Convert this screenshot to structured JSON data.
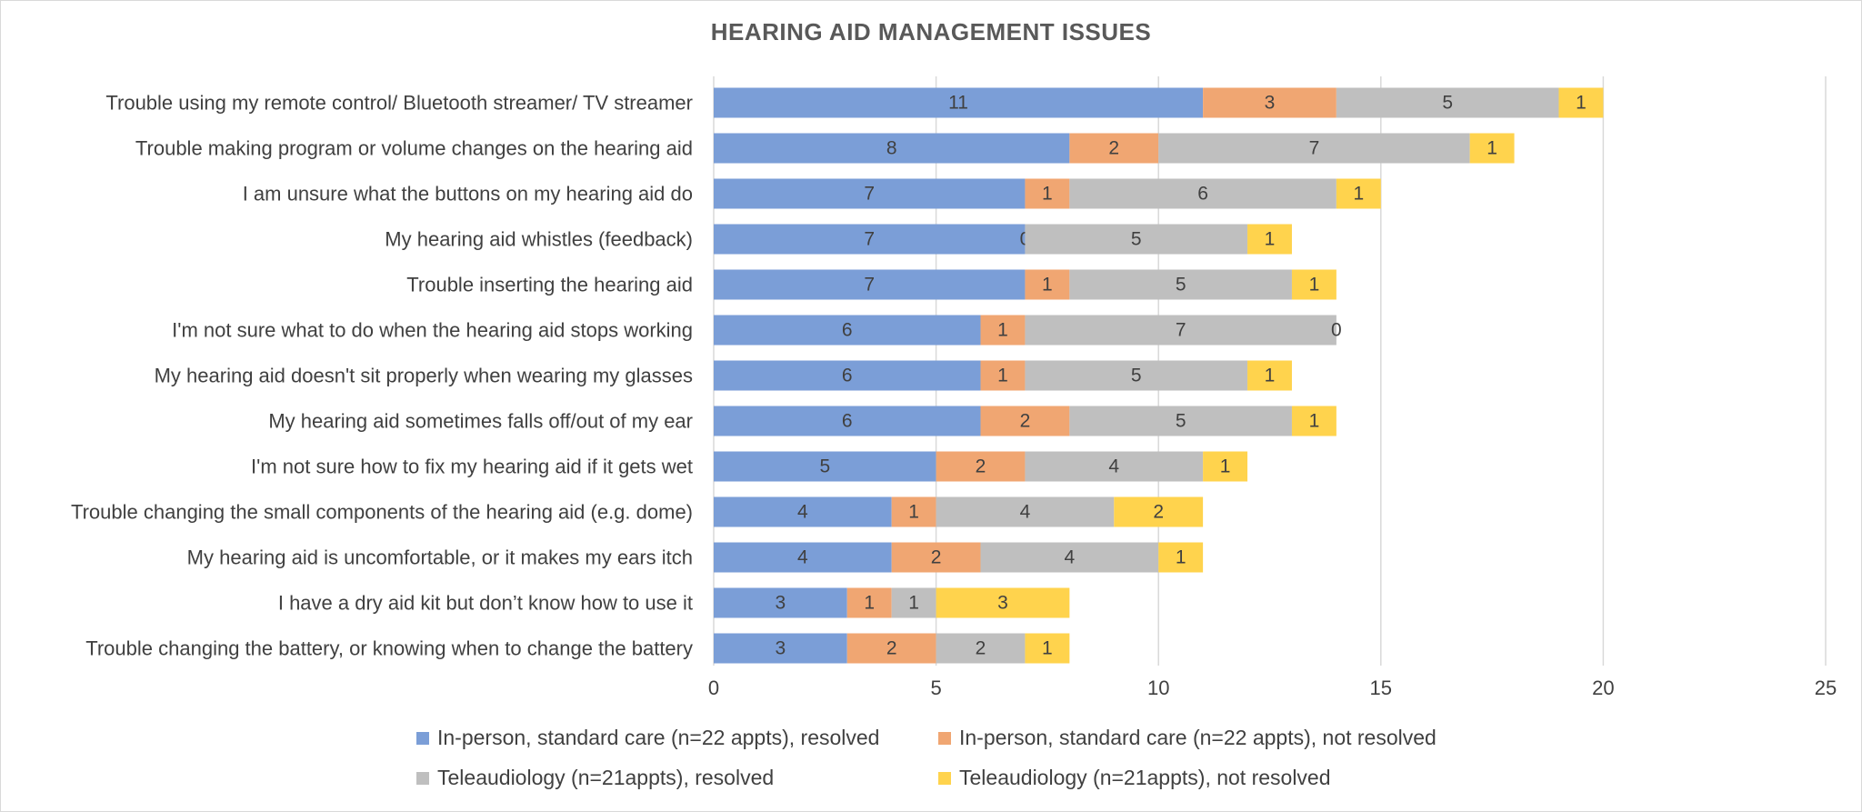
{
  "chart_data": {
    "type": "bar",
    "orientation": "horizontal",
    "stacked": true,
    "title": "HEARING AID MANAGEMENT ISSUES",
    "xlim": [
      0,
      25
    ],
    "xticks": [
      0,
      5,
      10,
      15,
      20,
      25
    ],
    "grid": true,
    "legend_position": "bottom",
    "categories": [
      "Trouble using my remote control/ Bluetooth streamer/ TV streamer",
      "Trouble making program or volume changes on the hearing aid",
      "I am unsure what the buttons on my hearing aid do",
      "My hearing aid whistles (feedback)",
      "Trouble inserting the hearing aid",
      "I'm not sure what to do when the hearing aid stops working",
      "My hearing aid doesn't sit properly when wearing my glasses",
      "My hearing aid sometimes falls off/out of my ear",
      "I'm not sure how to fix my hearing aid if it gets wet",
      "Trouble changing the small components of the hearing aid (e.g. dome)",
      "My hearing aid is uncomfortable, or it makes my ears itch",
      "I have a dry aid kit but don’t know how to use it",
      "Trouble changing the battery, or knowing when to change the battery"
    ],
    "series": [
      {
        "name": "In-person, standard care (n=22 appts), resolved",
        "color": "#7b9ed7",
        "values": [
          11,
          8,
          7,
          7,
          7,
          6,
          6,
          6,
          5,
          4,
          4,
          3,
          3
        ]
      },
      {
        "name": "In-person, standard care (n=22 appts), not resolved",
        "color": "#f0a672",
        "values": [
          3,
          2,
          1,
          0,
          1,
          1,
          1,
          2,
          2,
          1,
          2,
          1,
          2
        ]
      },
      {
        "name": "Teleaudiology (n=21appts), resolved",
        "color": "#bfbfbf",
        "values": [
          5,
          7,
          6,
          5,
          5,
          7,
          5,
          5,
          4,
          4,
          4,
          1,
          2
        ]
      },
      {
        "name": "Teleaudiology (n=21appts), not resolved",
        "color": "#ffd34d",
        "values": [
          1,
          1,
          1,
          1,
          1,
          0,
          1,
          1,
          1,
          2,
          1,
          3,
          1
        ]
      }
    ]
  }
}
